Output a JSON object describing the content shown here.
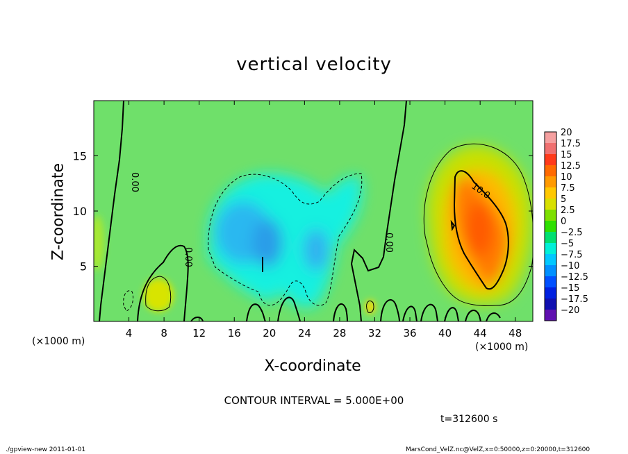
{
  "chart_data": {
    "type": "heatmap",
    "title": "vertical velocity",
    "xlabel": "X-coordinate",
    "ylabel": "Z-coordinate",
    "x_unit_label_left": "(×1000 m)",
    "x_unit_label_right": "(×1000 m)",
    "xlim": [
      0,
      50
    ],
    "ylim": [
      0,
      20
    ],
    "x_ticks": [
      4,
      8,
      12,
      16,
      20,
      24,
      28,
      32,
      36,
      40,
      44,
      48
    ],
    "y_ticks": [
      5,
      10,
      15
    ],
    "colorbar": {
      "levels": [
        20,
        17.5,
        15,
        12.5,
        10,
        7.5,
        5,
        2.5,
        0,
        -2.5,
        -5,
        -7.5,
        -10,
        -12.5,
        -15,
        -17.5,
        -20
      ],
      "labels": [
        "20",
        "17.5",
        "15",
        "12.5",
        "10",
        "7.5",
        "5",
        "2.5",
        "0",
        "−2.5",
        "−5",
        "−7.5",
        "−10",
        "−12.5",
        "−15",
        "−17.5",
        "−20"
      ],
      "colors": [
        "#f5a0a0",
        "#f07070",
        "#ff3a1a",
        "#ff6a00",
        "#ff9a00",
        "#ffc800",
        "#d8e000",
        "#7de000",
        "#2ee000",
        "#00e070",
        "#00f0d8",
        "#00c8ff",
        "#0090ff",
        "#0050ff",
        "#0020e0",
        "#1010b0",
        "#6010b0"
      ]
    },
    "contour_labels": [
      "0.00",
      "0.00",
      "0.00",
      "10.0"
    ],
    "contour_interval": "CONTOUR INTERVAL = 5.000E+00",
    "time": "t=312600 s",
    "features": [
      {
        "kind": "updraft",
        "x": 43.5,
        "z": 8.5,
        "rx": 3.2,
        "rz": 5.0,
        "peak": 12
      },
      {
        "kind": "downdraft",
        "x": 20,
        "z": 8,
        "rx": 5,
        "rz": 4.5,
        "peak": -7
      },
      {
        "kind": "downdraft",
        "x": 25,
        "z": 7,
        "rx": 3,
        "rz": 4,
        "peak": -5
      },
      {
        "kind": "weak-updraft",
        "x": 7.5,
        "z": 2.5,
        "rx": 1.5,
        "rz": 1.5,
        "peak": 5
      },
      {
        "kind": "weak-updraft",
        "x": 31.5,
        "z": 1.2,
        "rx": 0.6,
        "rz": 0.8,
        "peak": 5
      }
    ]
  },
  "footer": {
    "program": "./gpview-new   2011-01-01",
    "source": "MarsCond_VelZ.nc@VelZ,x=0:50000,z=0:20000,t=312600"
  }
}
